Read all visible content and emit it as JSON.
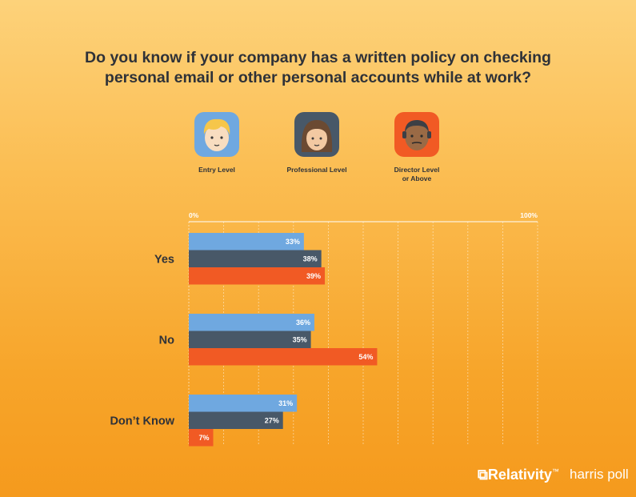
{
  "title_lines": [
    "Do you know if your company has a written policy on checking",
    "personal email or other personal accounts while at work?"
  ],
  "legend": [
    {
      "label": "Entry Level",
      "color": "#6fa8e0",
      "icon": "entry-level-avatar-icon"
    },
    {
      "label": "Professional Level",
      "color": "#485868",
      "icon": "professional-level-avatar-icon"
    },
    {
      "label": "Director Level\nor Above",
      "color": "#f15a24",
      "icon": "director-level-avatar-icon"
    }
  ],
  "chart_data": {
    "type": "bar",
    "orientation": "horizontal",
    "title": "Do you know if your company has a written policy on checking personal email or other personal accounts while at work?",
    "categories": [
      "Yes",
      "No",
      "Don’t Know"
    ],
    "series": [
      {
        "name": "Entry Level",
        "color": "#6fa8e0",
        "values": [
          33,
          36,
          31
        ]
      },
      {
        "name": "Professional Level",
        "color": "#485868",
        "values": [
          38,
          35,
          27
        ]
      },
      {
        "name": "Director Level or Above",
        "color": "#f15a24",
        "values": [
          39,
          54,
          7
        ]
      }
    ],
    "xlim": [
      0,
      100
    ],
    "value_suffix": "%",
    "axis_labels": {
      "min": "0%",
      "max": "100%"
    },
    "grid": true
  },
  "branding": {
    "relativity": "Relativity",
    "harris": "harris poll"
  }
}
